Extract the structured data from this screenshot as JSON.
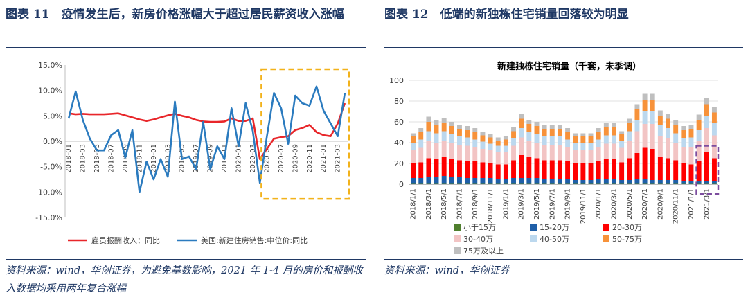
{
  "left": {
    "figure_title": "图表 11　疫情发生后，新房价格涨幅大于超过居民薪资收入涨幅",
    "source": "资料来源：wind，华创证券，为避免基数影响，2021 年 1-4 月的房价和报酬收入数据均采用两年复合涨幅"
  },
  "right": {
    "figure_title": "图表 12　低端的新独栋住宅销量回落较为明显",
    "source": "资料来源：wind，华创证券"
  },
  "colors": {
    "navy": "#1f3864",
    "income": "#e8262a",
    "price": "#2b7bbf",
    "highlight_yellow": "#f2b21b",
    "highlight_purple": "#7c4d9e",
    "grid": "#d9d9d9"
  },
  "chart_data": [
    {
      "type": "line",
      "title": "",
      "x": [
        "2018-01",
        "2018-02",
        "2018-03",
        "2018-04",
        "2018-05",
        "2018-06",
        "2018-07",
        "2018-08",
        "2018-09",
        "2018-10",
        "2018-11",
        "2018-12",
        "2019-01",
        "2019-02",
        "2019-03",
        "2019-04",
        "2019-05",
        "2019-06",
        "2019-07",
        "2019-08",
        "2019-09",
        "2019-10",
        "2019-11",
        "2019-12",
        "2020-01",
        "2020-02",
        "2020-03",
        "2020-04",
        "2020-05",
        "2020-06",
        "2020-07",
        "2020-08",
        "2020-09",
        "2020-10",
        "2020-11",
        "2020-12",
        "2021-01",
        "2021-02",
        "2021-03",
        "2021-04"
      ],
      "tick_labels": [
        "2018-01",
        "2018-03",
        "2018-05",
        "2018-07",
        "2018-09",
        "2018-11",
        "2019-01",
        "2019-03",
        "2019-05",
        "2019-07",
        "2019-09",
        "2019-11",
        "2020-01",
        "2020-03",
        "2020-05",
        "2020-07",
        "2020-09",
        "2020-11",
        "2021-01",
        "2021-03"
      ],
      "y_ticks": [
        "15.0%",
        "10.0%",
        "5.0%",
        "0.0%",
        "-5.0%",
        "-10.0%",
        "-15.0%"
      ],
      "ylim": [
        -15,
        15
      ],
      "series": [
        {
          "name": "雇员报酬收入：同比",
          "color_key": "income",
          "values": [
            5.5,
            5.3,
            5.4,
            5.3,
            5.3,
            5.3,
            5.4,
            5.5,
            5.1,
            4.7,
            4.3,
            4.0,
            4.3,
            4.7,
            5.1,
            5.4,
            5.0,
            4.7,
            4.2,
            3.9,
            3.8,
            3.8,
            3.9,
            4.5,
            4.0,
            4.0,
            4.5,
            -3.5,
            -1.5,
            0.5,
            0.8,
            1.0,
            2.2,
            2.6,
            3.2,
            1.8,
            1.2,
            1.0,
            3.5,
            7.5
          ]
        },
        {
          "name": "美国:新建住房销售:中位价:同比",
          "color_key": "price",
          "values": [
            4.5,
            9.8,
            4.2,
            0.5,
            -1.8,
            -1.8,
            1.2,
            2.2,
            -3.2,
            2.2,
            -10.0,
            -4.0,
            -7.5,
            -3.5,
            -7.0,
            7.8,
            -3.5,
            -3.0,
            -5.5,
            3.8,
            -5.5,
            -1.0,
            -3.5,
            6.5,
            -1.0,
            7.5,
            2.0,
            -8.2,
            1.0,
            9.5,
            6.5,
            -0.5,
            9.0,
            7.5,
            7.0,
            10.8,
            6.0,
            3.5,
            1.0,
            9.5
          ]
        }
      ],
      "legend": [
        "雇员报酬收入：同比",
        "美国:新建住房销售:中位价:同比"
      ],
      "legend_position": "bottom"
    },
    {
      "type": "bar",
      "stacked": true,
      "title": "新建独栋住宅销量（千套，未季调）",
      "categories": [
        "2018/1/1",
        "2018/2/1",
        "2018/3/1",
        "2018/4/1",
        "2018/5/1",
        "2018/6/1",
        "2018/7/1",
        "2018/8/1",
        "2018/9/1",
        "2018/10/1",
        "2018/11/1",
        "2018/12/1",
        "2019/1/1",
        "2019/2/1",
        "2019/3/1",
        "2019/4/1",
        "2019/5/1",
        "2019/6/1",
        "2019/7/1",
        "2019/8/1",
        "2019/9/1",
        "2019/10/1",
        "2019/11/1",
        "2019/12/1",
        "2020/1/1",
        "2020/2/1",
        "2020/3/1",
        "2020/4/1",
        "2020/5/1",
        "2020/6/1",
        "2020/7/1",
        "2020/8/1",
        "2020/9/1",
        "2020/10/1",
        "2020/11/1",
        "2020/12/1",
        "2021/1/1",
        "2021/2/1",
        "2021/3/1",
        "2021/4/1"
      ],
      "tick_labels": [
        "2018/1/1",
        "2018/3/1",
        "2018/5/1",
        "2018/7/1",
        "2018/9/1",
        "2018/11/1",
        "2019/1/1",
        "2019/3/1",
        "2019/5/1",
        "2019/7/1",
        "2019/9/1",
        "2019/11/1",
        "2020/1/1",
        "2020/3/1",
        "2020/5/1",
        "2020/7/1",
        "2020/9/1",
        "2020/11/1",
        "2021/1/1",
        "2021/3/1"
      ],
      "ylim": [
        0,
        100
      ],
      "y_ticks": [
        "100",
        "80",
        "60",
        "40",
        "20",
        "0"
      ],
      "series": [
        {
          "name": "小于15万",
          "color": "#4f7f2e",
          "values": [
            1,
            1,
            1,
            1,
            1,
            1,
            1,
            1,
            1,
            1,
            1,
            1,
            1,
            1,
            1,
            1,
            1,
            1,
            1,
            1,
            1,
            1,
            1,
            1,
            1,
            1,
            1,
            1,
            1,
            1,
            1,
            1,
            1,
            1,
            1,
            1,
            1,
            1,
            1,
            1
          ]
        },
        {
          "name": "15-20万",
          "color": "#1f5fa8",
          "values": [
            5,
            5,
            6,
            6,
            7,
            6,
            6,
            5,
            5,
            5,
            5,
            4,
            4,
            5,
            5,
            5,
            5,
            4,
            4,
            4,
            4,
            3,
            3,
            3,
            4,
            4,
            4,
            3,
            3,
            4,
            4,
            3,
            3,
            3,
            3,
            2,
            2,
            2,
            2,
            2
          ]
        },
        {
          "name": "20-30万",
          "color": "#ff0000",
          "values": [
            14,
            15,
            18,
            17,
            18,
            17,
            16,
            16,
            16,
            15,
            14,
            14,
            14,
            17,
            22,
            20,
            19,
            18,
            18,
            18,
            17,
            16,
            16,
            16,
            17,
            19,
            19,
            17,
            21,
            25,
            30,
            30,
            22,
            21,
            19,
            17,
            16,
            19,
            28,
            22
          ]
        },
        {
          "name": "30-40万",
          "color": "#f2c4c4",
          "values": [
            13,
            14,
            17,
            16,
            16,
            16,
            15,
            15,
            14,
            13,
            13,
            12,
            12,
            14,
            17,
            16,
            15,
            15,
            15,
            15,
            14,
            13,
            13,
            13,
            14,
            15,
            15,
            14,
            17,
            21,
            23,
            24,
            20,
            19,
            17,
            16,
            17,
            20,
            23,
            22
          ]
        },
        {
          "name": "40-50万",
          "color": "#bcd8ee",
          "values": [
            7,
            8,
            9,
            9,
            9,
            8,
            8,
            8,
            7,
            7,
            6,
            6,
            6,
            7,
            9,
            8,
            8,
            8,
            8,
            8,
            7,
            7,
            7,
            7,
            7,
            8,
            8,
            7,
            9,
            11,
            12,
            12,
            11,
            10,
            9,
            8,
            9,
            10,
            12,
            12
          ]
        },
        {
          "name": "50-75万",
          "color": "#f7923a",
          "values": [
            6,
            7,
            9,
            8,
            8,
            8,
            7,
            7,
            7,
            6,
            6,
            5,
            6,
            7,
            9,
            8,
            8,
            7,
            7,
            7,
            7,
            6,
            6,
            6,
            7,
            8,
            8,
            6,
            8,
            10,
            11,
            11,
            9,
            9,
            8,
            8,
            8,
            10,
            11,
            10
          ]
        },
        {
          "name": "75万及以上",
          "color": "#bfbfbf",
          "values": [
            3,
            4,
            5,
            5,
            5,
            4,
            4,
            4,
            4,
            3,
            3,
            3,
            3,
            4,
            5,
            4,
            4,
            4,
            4,
            4,
            4,
            3,
            3,
            3,
            4,
            4,
            4,
            3,
            4,
            5,
            6,
            6,
            5,
            5,
            5,
            4,
            4,
            5,
            6,
            5
          ]
        }
      ],
      "legend": [
        "小于15万",
        "15-20万",
        "20-30万",
        "30-40万",
        "40-50万",
        "50-75万",
        "75万及以上"
      ],
      "legend_position": "bottom"
    }
  ]
}
